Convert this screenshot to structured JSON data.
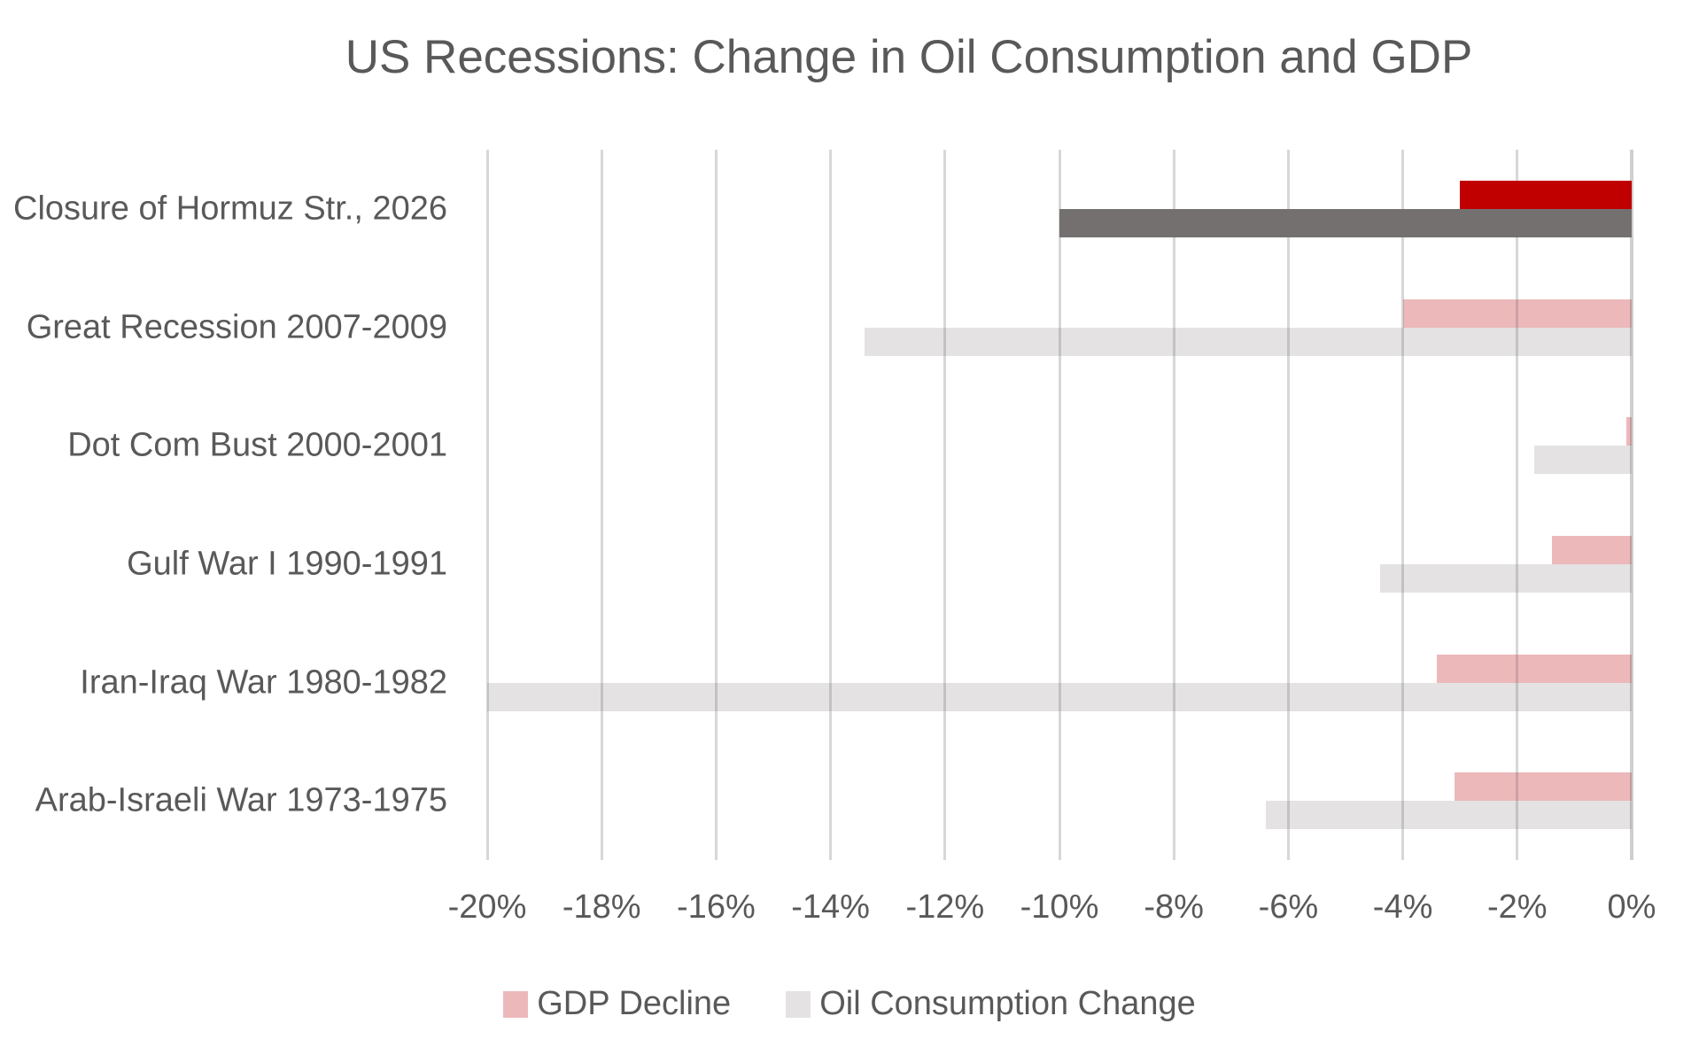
{
  "title": "US Recessions: Change in Oil Consumption and GDP",
  "chart_data": {
    "type": "bar",
    "orientation": "horizontal",
    "title": "US Recessions: Change in Oil Consumption and GDP",
    "categories": [
      "Closure of Hormuz Str., 2026",
      "Great Recession 2007-2009",
      "Dot Com Bust 2000-2001",
      "Gulf War I 1990-1991",
      "Iran-Iraq War 1980-1982",
      "Arab-Israeli War 1973-1975"
    ],
    "series": [
      {
        "name": "GDP Decline",
        "values": [
          -3.0,
          -4.0,
          -0.1,
          -1.4,
          -3.4,
          -3.1
        ]
      },
      {
        "name": "Oil Consumption Change",
        "values": [
          -10.0,
          -13.4,
          -1.7,
          -4.4,
          -20.0,
          -6.4
        ]
      }
    ],
    "value_axis": {
      "min": -20,
      "max": 0,
      "step": 2,
      "tick_labels": [
        "-20%",
        "-18%",
        "-16%",
        "-14%",
        "-12%",
        "-10%",
        "-8%",
        "-6%",
        "-4%",
        "-2%",
        "0%"
      ]
    },
    "grid": true,
    "legend_position": "bottom",
    "highlight_index": 0,
    "highlight_category": "Closure of Hormuz Str., 2026",
    "colors": {
      "gdp_decline": "#ECB8BA",
      "oil_consumption": "#E4E2E3",
      "gdp_decline_highlight": "#C00000",
      "oil_consumption_highlight": "#747070",
      "gridline": "#D9D9D9",
      "zero_line": "#D0CECE",
      "text": "#595959",
      "background": "#FFFFFF"
    }
  },
  "legend": {
    "items": [
      {
        "label": "GDP Decline",
        "color": "#ECB8BA"
      },
      {
        "label": "Oil Consumption Change",
        "color": "#E4E2E3"
      }
    ]
  }
}
